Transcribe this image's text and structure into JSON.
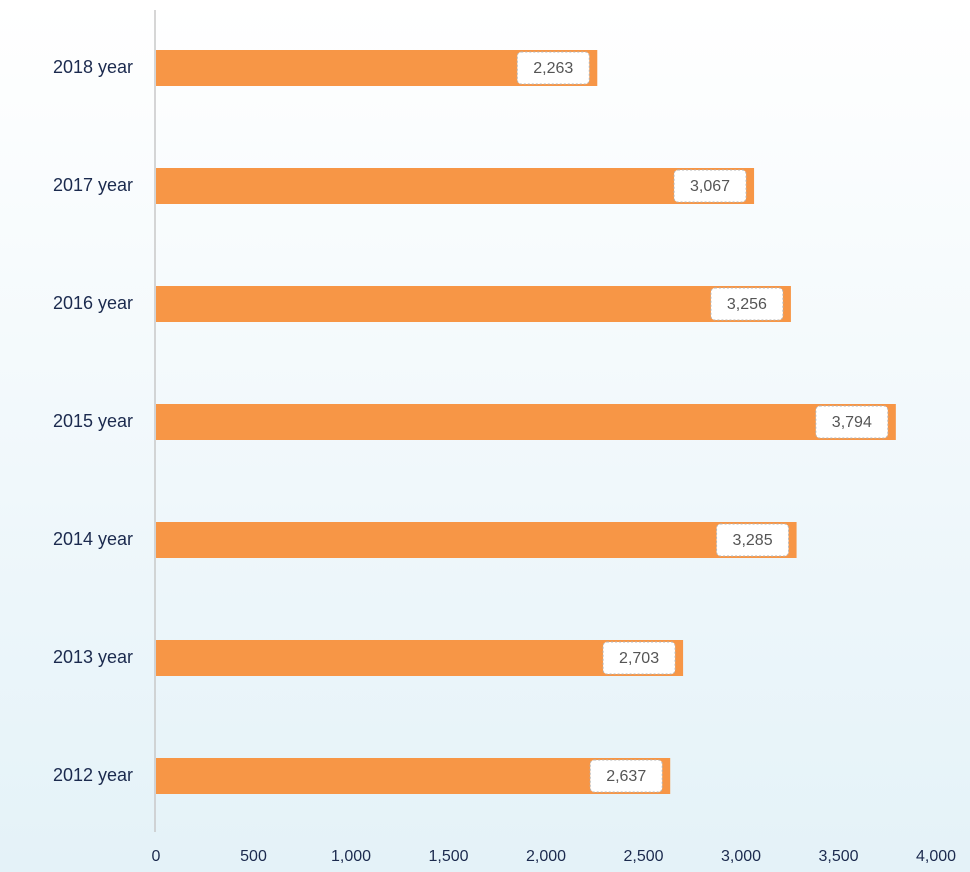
{
  "chart_data": {
    "type": "bar",
    "orientation": "horizontal",
    "categories": [
      "2018 year",
      "2017 year",
      "2016 year",
      "2015 year",
      "2014 year",
      "2013 year",
      "2012 year"
    ],
    "values": [
      2263,
      3067,
      3256,
      3794,
      3285,
      2703,
      2637
    ],
    "value_labels": [
      "2,263",
      "3,067",
      "3,256",
      "3,794",
      "3,285",
      "2,703",
      "2,637"
    ],
    "color": "#f79646",
    "xlim": [
      0,
      4000
    ],
    "xticks": [
      0,
      500,
      {
        "value": 1000,
        "label": "1,000"
      },
      {
        "value": 1500,
        "label": "1,500"
      },
      {
        "value": 2000,
        "label": "2,000"
      },
      {
        "value": 2500,
        "label": "2,500"
      },
      {
        "value": 3000,
        "label": "3,000"
      },
      {
        "value": 3500,
        "label": "3,500"
      },
      {
        "value": 4000,
        "label": "4,000"
      }
    ],
    "grid": false
  }
}
